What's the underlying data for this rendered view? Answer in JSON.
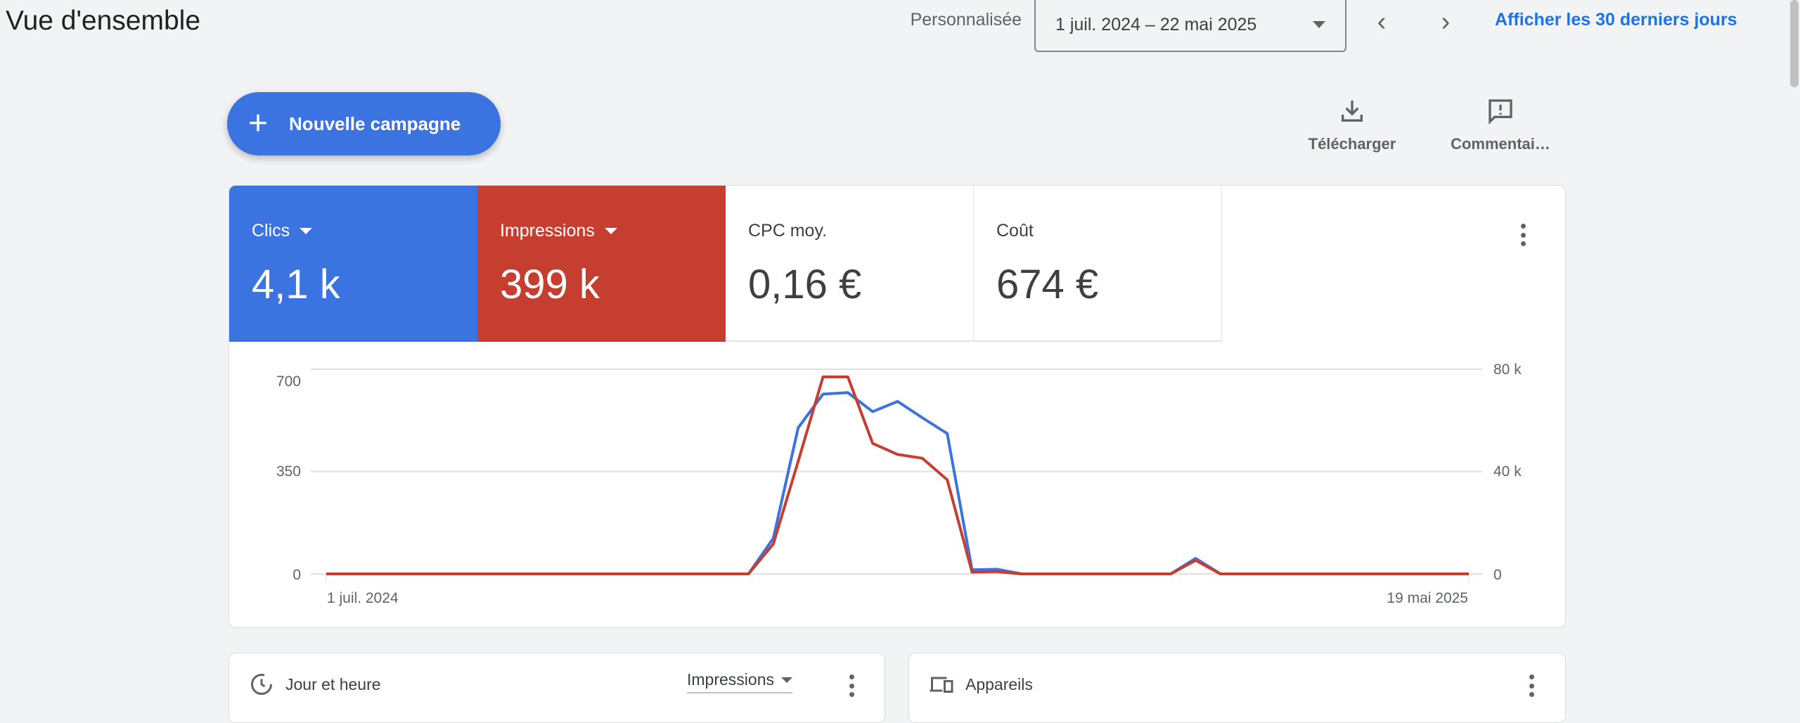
{
  "header": {
    "title": "Vue d'ensemble",
    "range_type": "Personnalisée",
    "date_range": "1 juil. 2024 – 22 mai 2025",
    "prev_icon": "chevron-left-icon",
    "next_icon": "chevron-right-icon",
    "last_30_link": "Afficher les 30 derniers jours"
  },
  "toolbar": {
    "new_campaign": "Nouvelle campagne",
    "download": "Télécharger",
    "feedback": "Commentai…"
  },
  "metrics": [
    {
      "label": "Clics",
      "value": "4,1 k",
      "color": "#3b73e0",
      "selected": true
    },
    {
      "label": "Impressions",
      "value": "399 k",
      "color": "#c53e30",
      "selected": true
    },
    {
      "label": "CPC moy.",
      "value": "0,16 €",
      "selected": false
    },
    {
      "label": "Coût",
      "value": "674 €",
      "selected": false
    }
  ],
  "chart_data": {
    "type": "line",
    "x_labels": [
      "1 juil. 2024",
      "19 mai 2025"
    ],
    "x_start": "2024-07-01",
    "x_end": "2025-05-19",
    "x_interval": "week",
    "left_axis": {
      "ticks": [
        "0",
        "350",
        "700"
      ],
      "range": [
        0,
        700
      ]
    },
    "right_axis": {
      "ticks": [
        "0",
        "40 k",
        "80 k"
      ],
      "range": [
        0,
        80000
      ]
    },
    "grid": true,
    "series": [
      {
        "name": "Clics",
        "axis": "left",
        "color": "#3b73e0",
        "values": [
          0,
          0,
          0,
          0,
          0,
          0,
          0,
          0,
          0,
          0,
          0,
          0,
          0,
          0,
          0,
          0,
          0,
          0,
          122,
          500,
          615,
          620,
          555,
          590,
          534,
          480,
          14,
          16,
          0,
          0,
          0,
          0,
          0,
          0,
          0,
          53,
          0,
          0,
          0,
          0,
          0,
          0,
          0,
          0,
          0,
          0,
          0
        ]
      },
      {
        "name": "Impressions",
        "axis": "right",
        "color": "#c53e30",
        "values": [
          0,
          0,
          0,
          0,
          0,
          0,
          0,
          0,
          0,
          0,
          0,
          0,
          0,
          0,
          0,
          0,
          0,
          0,
          11700,
          44000,
          77000,
          77000,
          51000,
          46700,
          45200,
          36800,
          700,
          900,
          0,
          0,
          0,
          0,
          0,
          0,
          0,
          5300,
          0,
          0,
          0,
          0,
          0,
          0,
          0,
          0,
          0,
          0,
          0
        ]
      }
    ]
  },
  "cards": [
    {
      "title": "Jour et heure",
      "icon": "clock-icon",
      "metric_select": "Impressions"
    },
    {
      "title": "Appareils",
      "icon": "devices-icon"
    }
  ]
}
